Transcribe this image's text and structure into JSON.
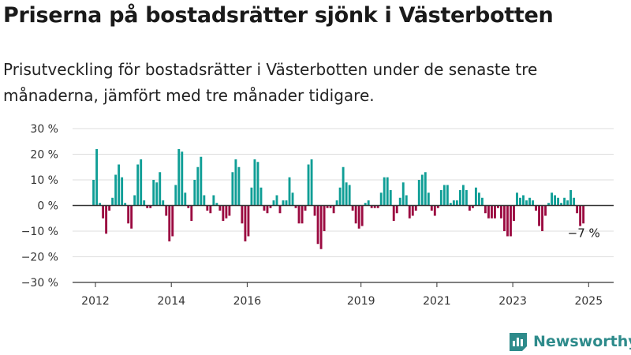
{
  "header": {
    "title": "Priserna på bostadsrätter sjönk i Västerbotten",
    "subtitle": "Prisutveckling för bostadsrätter i Västerbotten under de senaste tre månaderna, jämfört med tre månader tidigare."
  },
  "brand": {
    "name": "Newsworthy",
    "icon": "newsworthy-logo-icon",
    "color": "#2e8b8b"
  },
  "colors": {
    "positive": "#0f9e96",
    "negative": "#9b0b41",
    "grid": "#dddddd",
    "axis": "#333333"
  },
  "chart_data": {
    "type": "bar",
    "ylim": [
      -30,
      30
    ],
    "y_ticks": [
      30,
      20,
      10,
      0,
      -10,
      -20,
      -30
    ],
    "y_tick_labels": [
      "30 %",
      "20 %",
      "10 %",
      "0 %",
      "−10 %",
      "−20 %",
      "−30 %"
    ],
    "x_tick_labels": [
      "2012",
      "2014",
      "2016",
      "2019",
      "2021",
      "2023",
      "2025"
    ],
    "x_tick_positions": [
      2012.0,
      2014.0,
      2016.0,
      2019.0,
      2021.0,
      2023.0,
      2025.0
    ],
    "x_start": 2011.95,
    "x_step": 0.0833,
    "annotation": {
      "text": "−7 %",
      "value": -7
    },
    "values": [
      10,
      22,
      1,
      -5,
      -11,
      -2,
      3,
      12,
      16,
      11,
      1,
      -7,
      -9,
      4,
      16,
      18,
      2,
      -1,
      -1,
      10,
      9,
      13,
      2,
      -4,
      -14,
      -12,
      8,
      22,
      21,
      5,
      -1,
      -6,
      10,
      15,
      19,
      4,
      -2,
      -3,
      4,
      1,
      -2,
      -6,
      -5,
      -4,
      13,
      18,
      15,
      -7,
      -14,
      -12,
      7,
      18,
      17,
      7,
      -2,
      -3,
      -1,
      2,
      4,
      -3,
      2,
      2,
      11,
      5,
      -1,
      -7,
      -7,
      -2,
      16,
      18,
      -4,
      -15,
      -17,
      -10,
      -1,
      -1,
      -3,
      2,
      7,
      15,
      9,
      8,
      -2,
      -7,
      -9,
      -8,
      1,
      2,
      -1,
      -1,
      -1,
      5,
      11,
      11,
      6,
      -6,
      -3,
      3,
      9,
      4,
      -5,
      -4,
      -2,
      10,
      12,
      13,
      5,
      -2,
      -4,
      -1,
      6,
      8,
      8,
      1,
      2,
      2,
      6,
      8,
      6,
      -2,
      -1,
      7,
      5,
      3,
      -3,
      -5,
      -5,
      -5,
      -1,
      -5,
      -10,
      -12,
      -12,
      -6,
      5,
      3,
      4,
      2,
      3,
      2,
      -2,
      -8,
      -10,
      -4,
      1,
      5,
      4,
      3,
      1,
      3,
      2,
      6,
      3,
      -3,
      -8,
      -7
    ]
  }
}
